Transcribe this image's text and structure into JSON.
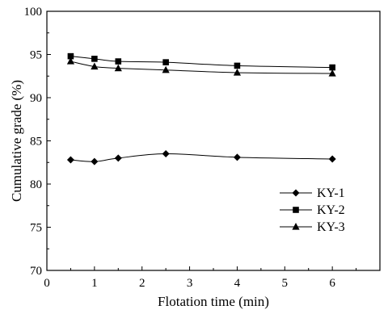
{
  "chart_data": {
    "type": "line",
    "title": "",
    "xlabel": "Flotation time (min)",
    "ylabel": "Cumulative grade (%)",
    "xlim": [
      0,
      7
    ],
    "ylim": [
      70,
      100
    ],
    "xticks": [
      0,
      1,
      2,
      3,
      4,
      5,
      6
    ],
    "yticks": [
      70,
      75,
      80,
      85,
      90,
      95,
      100
    ],
    "grid": false,
    "legend_position": "lower-right",
    "line_color": "#000000",
    "series": [
      {
        "name": "KY-1",
        "marker": "diamond",
        "x": [
          0.5,
          1,
          1.5,
          2.5,
          4,
          6
        ],
        "values": [
          82.8,
          82.6,
          83.0,
          83.5,
          83.1,
          82.9
        ]
      },
      {
        "name": "KY-2",
        "marker": "square",
        "x": [
          0.5,
          1,
          1.5,
          2.5,
          4,
          6
        ],
        "values": [
          94.8,
          94.5,
          94.2,
          94.1,
          93.7,
          93.5
        ]
      },
      {
        "name": "KY-3",
        "marker": "triangle",
        "x": [
          0.5,
          1,
          1.5,
          2.5,
          4,
          6
        ],
        "values": [
          94.2,
          93.6,
          93.4,
          93.2,
          92.9,
          92.8
        ]
      }
    ]
  }
}
